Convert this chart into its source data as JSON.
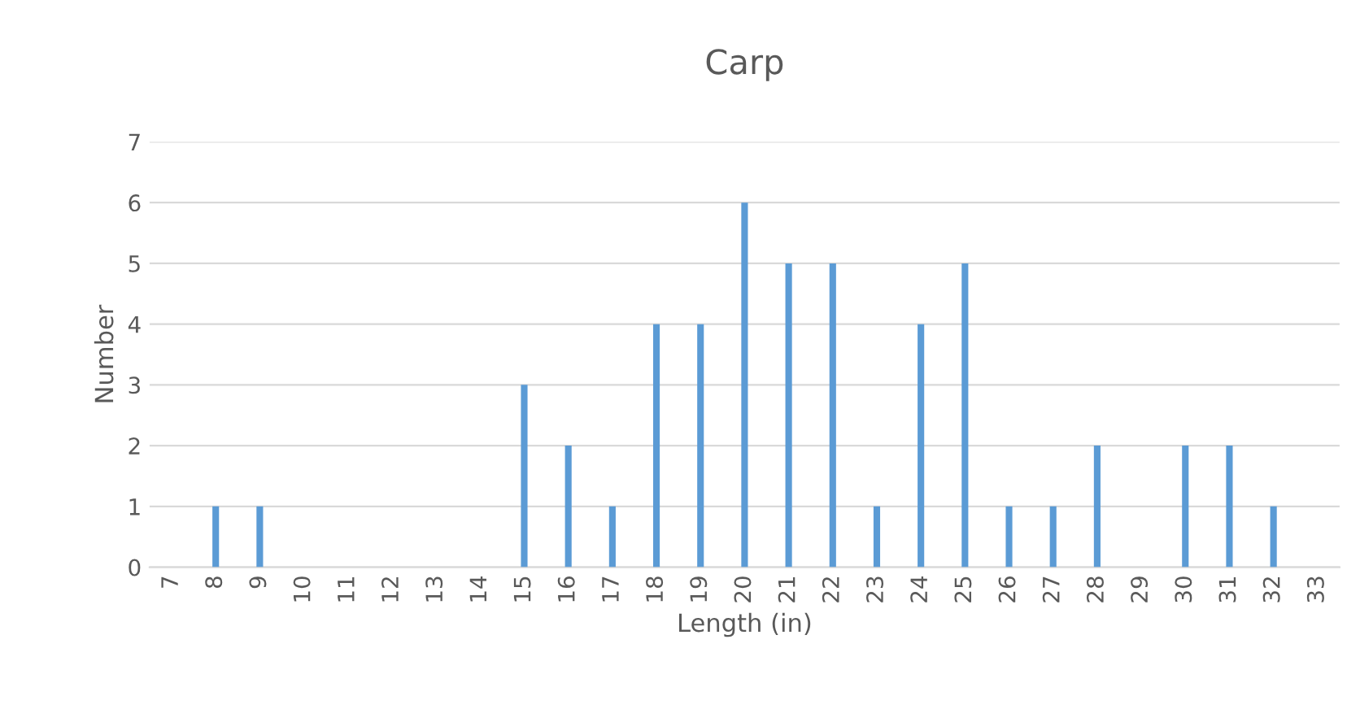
{
  "chart_data": {
    "type": "bar",
    "title": "Carp",
    "xlabel": "Length (in)",
    "ylabel": "Number",
    "categories": [
      "7",
      "8",
      "9",
      "10",
      "11",
      "12",
      "13",
      "14",
      "15",
      "16",
      "17",
      "18",
      "19",
      "20",
      "21",
      "22",
      "23",
      "24",
      "25",
      "26",
      "27",
      "28",
      "29",
      "30",
      "31",
      "32",
      "33"
    ],
    "values": [
      0,
      1,
      1,
      0,
      0,
      0,
      0,
      0,
      3,
      2,
      1,
      4,
      4,
      6,
      5,
      5,
      1,
      4,
      5,
      1,
      1,
      2,
      0,
      2,
      2,
      1,
      0
    ],
    "color": "#5b9bd5",
    "ylim": [
      0,
      7
    ],
    "yticks": [
      0,
      1,
      2,
      3,
      4,
      5,
      6,
      7
    ],
    "grid": "y",
    "legend": false
  }
}
